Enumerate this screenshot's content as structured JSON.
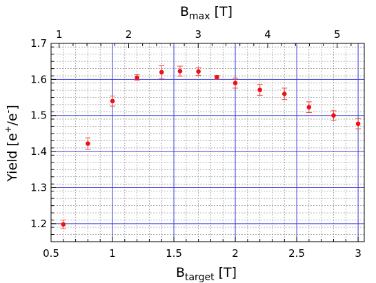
{
  "chart_data": {
    "type": "scatter",
    "xlabel": {
      "base": "B",
      "sub": "target",
      "unit": " [T]"
    },
    "x2label": {
      "base": "B",
      "sub": "max",
      "unit": " [T]"
    },
    "ylabel": {
      "base": "Yield [e",
      "sup1": "+",
      "mid": "/e",
      "sup2": "-",
      "end": "]"
    },
    "xlim": [
      0.5,
      3.05
    ],
    "ylim": [
      1.15,
      1.7
    ],
    "x2_per_x": 1.767,
    "x_ticks": [
      "0.5",
      "1",
      "1.5",
      "2",
      "2.5",
      "3"
    ],
    "x2_ticks": [
      "1",
      "2",
      "3",
      "4",
      "5"
    ],
    "y_ticks": [
      "1.2",
      "1.3",
      "1.4",
      "1.5",
      "1.6",
      "1.7"
    ],
    "major_grid_color": "#3b3bd9",
    "minor_grid_color": "#8c8c8c",
    "marker_color": "#ee1111",
    "errorbar_color": "#ee4444",
    "points": [
      {
        "x": 0.6,
        "y": 1.198,
        "err": 0.012
      },
      {
        "x": 0.8,
        "y": 1.422,
        "err": 0.016
      },
      {
        "x": 1.0,
        "y": 1.54,
        "err": 0.014
      },
      {
        "x": 1.2,
        "y": 1.605,
        "err": 0.008
      },
      {
        "x": 1.4,
        "y": 1.62,
        "err": 0.018
      },
      {
        "x": 1.55,
        "y": 1.623,
        "err": 0.014
      },
      {
        "x": 1.7,
        "y": 1.622,
        "err": 0.011
      },
      {
        "x": 1.85,
        "y": 1.606,
        "err": 0.005
      },
      {
        "x": 2.0,
        "y": 1.59,
        "err": 0.014
      },
      {
        "x": 2.2,
        "y": 1.571,
        "err": 0.015
      },
      {
        "x": 2.4,
        "y": 1.56,
        "err": 0.016
      },
      {
        "x": 2.6,
        "y": 1.523,
        "err": 0.015
      },
      {
        "x": 2.8,
        "y": 1.5,
        "err": 0.013
      },
      {
        "x": 3.0,
        "y": 1.477,
        "err": 0.014
      }
    ]
  }
}
